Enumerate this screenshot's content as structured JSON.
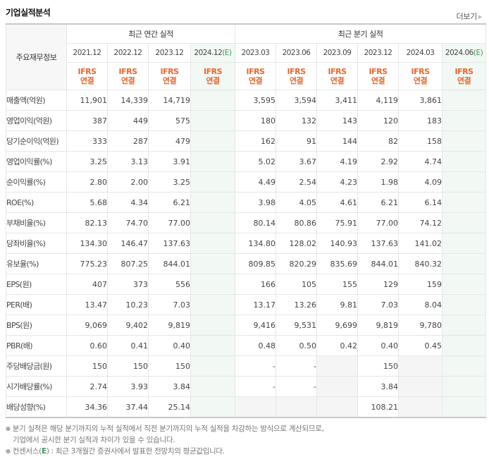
{
  "header": {
    "title": "기업실적분석",
    "more_label": "더보기",
    "more_icon": "triangle-right-icon"
  },
  "table": {
    "corner_label": "주요재무정보",
    "groups": {
      "annual": "최근 연간 실적",
      "quarterly": "최근 분기 실적"
    },
    "periods": [
      {
        "date": "2021.12",
        "est": "",
        "type1": "IFRS",
        "type2": "연결"
      },
      {
        "date": "2022.12",
        "est": "",
        "type1": "IFRS",
        "type2": "연결"
      },
      {
        "date": "2023.12",
        "est": "",
        "type1": "IFRS",
        "type2": "연결"
      },
      {
        "date": "2024.12",
        "est": "(E)",
        "type1": "IFRS",
        "type2": "연결"
      },
      {
        "date": "2023.03",
        "est": "",
        "type1": "IFRS",
        "type2": "연결"
      },
      {
        "date": "2023.06",
        "est": "",
        "type1": "IFRS",
        "type2": "연결"
      },
      {
        "date": "2023.09",
        "est": "",
        "type1": "IFRS",
        "type2": "연결"
      },
      {
        "date": "2023.12",
        "est": "",
        "type1": "IFRS",
        "type2": "연결"
      },
      {
        "date": "2024.03",
        "est": "",
        "type1": "IFRS",
        "type2": "연결"
      },
      {
        "date": "2024.06",
        "est": "(E)",
        "type1": "IFRS",
        "type2": "연결"
      }
    ],
    "rows": [
      {
        "label": "매출액(억원)",
        "values": [
          "11,901",
          "14,339",
          "14,719",
          "",
          "3,595",
          "3,594",
          "3,411",
          "4,119",
          "3,861",
          ""
        ]
      },
      {
        "label": "영업이익(억원)",
        "values": [
          "387",
          "449",
          "575",
          "",
          "180",
          "132",
          "143",
          "120",
          "183",
          ""
        ]
      },
      {
        "label": "당기순이익(억원)",
        "values": [
          "333",
          "287",
          "479",
          "",
          "162",
          "91",
          "144",
          "82",
          "158",
          ""
        ]
      },
      {
        "label": "영업이익률(%)",
        "values": [
          "3.25",
          "3.13",
          "3.91",
          "",
          "5.02",
          "3.67",
          "4.19",
          "2.92",
          "4.74",
          ""
        ]
      },
      {
        "label": "순이익률(%)",
        "values": [
          "2.80",
          "2.00",
          "3.25",
          "",
          "4.49",
          "2.54",
          "4.23",
          "1.98",
          "4.09",
          ""
        ]
      },
      {
        "label": "ROE(%)",
        "values": [
          "5.68",
          "4.34",
          "6.21",
          "",
          "3.98",
          "4.05",
          "4.61",
          "6.21",
          "6.14",
          ""
        ]
      },
      {
        "label": "부채비율(%)",
        "values": [
          "82.13",
          "74.70",
          "77.00",
          "",
          "80.14",
          "80.86",
          "75.91",
          "77.00",
          "74.12",
          ""
        ]
      },
      {
        "label": "당좌비율(%)",
        "values": [
          "134.30",
          "146.47",
          "137.63",
          "",
          "134.80",
          "128.02",
          "140.93",
          "137.63",
          "141.02",
          ""
        ]
      },
      {
        "label": "유보율(%)",
        "values": [
          "775.23",
          "807.25",
          "844.01",
          "",
          "809.85",
          "820.29",
          "835.69",
          "844.01",
          "840.32",
          ""
        ]
      },
      {
        "label": "EPS(원)",
        "values": [
          "407",
          "373",
          "556",
          "",
          "166",
          "105",
          "155",
          "129",
          "159",
          ""
        ]
      },
      {
        "label": "PER(배)",
        "values": [
          "13.47",
          "10.23",
          "7.03",
          "",
          "13.17",
          "13.26",
          "9.81",
          "7.03",
          "8.04",
          ""
        ]
      },
      {
        "label": "BPS(원)",
        "values": [
          "9,069",
          "9,402",
          "9,819",
          "",
          "9,416",
          "9,531",
          "9,699",
          "9,819",
          "9,780",
          ""
        ]
      },
      {
        "label": "PBR(배)",
        "values": [
          "0.60",
          "0.41",
          "0.40",
          "",
          "0.48",
          "0.50",
          "0.42",
          "0.40",
          "0.45",
          ""
        ]
      },
      {
        "label": "주당배당금(원)",
        "values": [
          "150",
          "150",
          "150",
          "",
          "-",
          "-",
          "",
          "150",
          "",
          ""
        ]
      },
      {
        "label": "시가배당률(%)",
        "values": [
          "2.74",
          "3.93",
          "3.84",
          "",
          "-",
          "-",
          "",
          "3.84",
          "",
          ""
        ]
      },
      {
        "label": "배당성향(%)",
        "values": [
          "34.36",
          "37.44",
          "25.14",
          "",
          "",
          "",
          "",
          "108.21",
          "",
          ""
        ]
      }
    ]
  },
  "notes": {
    "line1": "분기 실적은 해당 분기까지의 누적 실적에서 직전 분기까지의 누적 실적을 차감하는 방식으로 계산되므로,",
    "line2": "기업에서 공시한 분기 실적과 차이가 있을 수 있습니다.",
    "line3_prefix": "컨센서스(",
    "line3_e": "E",
    "line3_suffix": ") : 최근 3개월간 증권사에서 발표한 전망치의 평균값입니다."
  },
  "colors": {
    "ifrs": "#e8662a",
    "estimate": "#3f9a5a",
    "estimate_col_bg": "#f2f8f3",
    "empty_cell_bg": "#f5f5f5"
  }
}
